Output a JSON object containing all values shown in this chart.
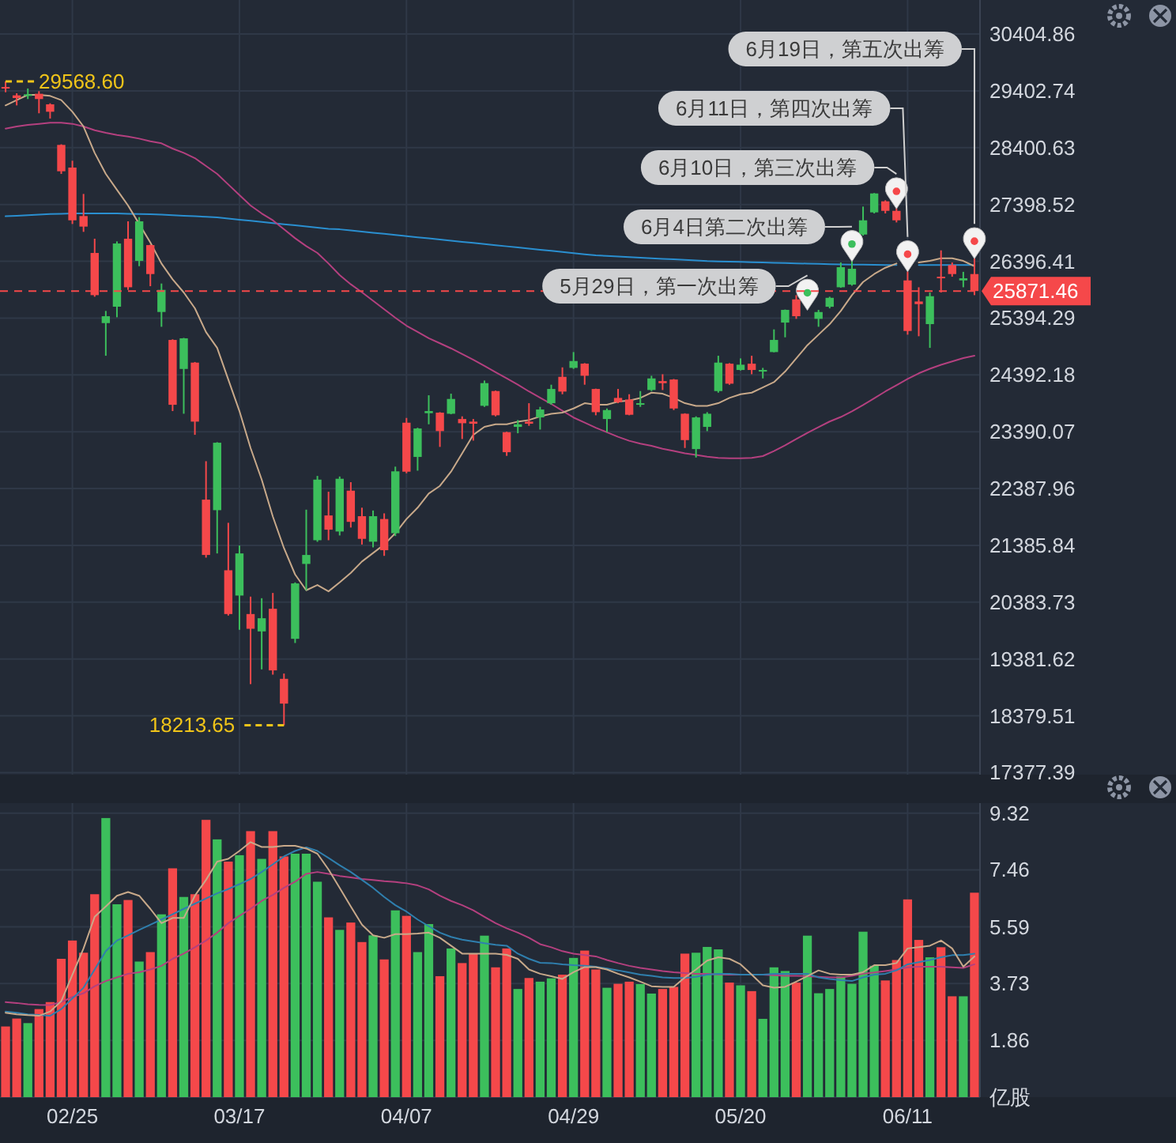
{
  "chart_data": [
    {
      "type": "candlestick",
      "tick_labels": "y",
      "grid": true,
      "categories": [
        null,
        null,
        null,
        null,
        null,
        null,
        null,
        null,
        null,
        null,
        null,
        null,
        null,
        null,
        null,
        null,
        null,
        null,
        null,
        null,
        null,
        null,
        null,
        null,
        null,
        null,
        null,
        null,
        null,
        null,
        null,
        null,
        null,
        null,
        null,
        null,
        null,
        null,
        null,
        null,
        null,
        null,
        null,
        null,
        null,
        null,
        null,
        null,
        null,
        null,
        null,
        null,
        null,
        null,
        null,
        null,
        null,
        null,
        null,
        null,
        null,
        null,
        null,
        null,
        null,
        null,
        null,
        null,
        null,
        null,
        null,
        null,
        null,
        null,
        null,
        null,
        null,
        null,
        null,
        null,
        null,
        null,
        null,
        null,
        null,
        null,
        null,
        null
      ],
      "ohlc": [
        [
          29471,
          29568.6,
          29378,
          29444
        ],
        [
          29323,
          29360,
          29146,
          29276
        ],
        [
          29313,
          29444,
          29258,
          29341
        ],
        [
          29351,
          29397,
          29007,
          29258
        ],
        [
          29165,
          29183,
          28914,
          29034
        ],
        [
          28449,
          28460,
          27937,
          27984
        ],
        [
          28049,
          28170,
          27054,
          27119
        ],
        [
          27194,
          27584,
          26915,
          27008
        ],
        [
          26543,
          26794,
          25771,
          25799
        ],
        [
          25306,
          25520,
          24730,
          25427
        ],
        [
          25595,
          26747,
          25409,
          26710
        ],
        [
          26794,
          27101,
          25892,
          25938
        ],
        [
          26403,
          27175,
          26310,
          27101
        ],
        [
          26682,
          26690,
          25957,
          26171
        ],
        [
          25502,
          26004,
          25241,
          25892
        ],
        [
          25009,
          25020,
          23754,
          23865
        ],
        [
          24497,
          25045,
          23707,
          25037
        ],
        [
          24609,
          24620,
          23335,
          23568
        ],
        [
          22192,
          22870,
          21169,
          21216
        ],
        [
          22006,
          23205,
          21243,
          23196
        ],
        [
          20946,
          21783,
          20147,
          20174
        ],
        [
          20500,
          21383,
          19896,
          21243
        ],
        [
          20174,
          20481,
          18938,
          19914
        ],
        [
          19868,
          20453,
          19198,
          20100
        ],
        [
          20267,
          20546,
          19105,
          19180
        ],
        [
          19031,
          19124,
          18213.65,
          18594
        ],
        [
          19737,
          20732,
          19663,
          20714
        ],
        [
          21058,
          22015,
          20593,
          21216
        ],
        [
          21476,
          22610,
          21448,
          22545
        ],
        [
          21913,
          22331,
          21476,
          21662
        ],
        [
          21630,
          22600,
          21560,
          22560
        ],
        [
          22350,
          22500,
          21700,
          21800
        ],
        [
          21900,
          22050,
          21400,
          21500
        ],
        [
          21450,
          22000,
          21350,
          21900
        ],
        [
          21850,
          21950,
          21200,
          21300
        ],
        [
          21600,
          22774,
          21550,
          22691
        ],
        [
          23549,
          23633,
          22657,
          22685
        ],
        [
          22945,
          23460,
          22703,
          23447
        ],
        [
          23717,
          24033,
          23521,
          23754
        ],
        [
          23726,
          23735,
          23122,
          23401
        ],
        [
          23707,
          24061,
          23698,
          23968
        ],
        [
          23614,
          23661,
          23261,
          23540
        ],
        [
          23568,
          23614,
          23233,
          23531
        ],
        [
          23847,
          24293,
          23828,
          24247
        ],
        [
          24107,
          24115,
          23661,
          23680
        ],
        [
          23382,
          23390,
          22964,
          23029
        ],
        [
          23475,
          23596,
          23363,
          23521
        ],
        [
          23568,
          23893,
          23494,
          23531
        ],
        [
          23642,
          23828,
          23428,
          23782
        ],
        [
          23893,
          24219,
          23866,
          24144
        ],
        [
          24358,
          24525,
          24051,
          24098
        ],
        [
          24516,
          24795,
          24498,
          24637
        ],
        [
          24591,
          24600,
          24219,
          24377
        ],
        [
          24144,
          24150,
          23680,
          23735
        ],
        [
          23614,
          23800,
          23382,
          23772
        ],
        [
          23986,
          24144,
          23893,
          23912
        ],
        [
          23958,
          24051,
          23680,
          23689
        ],
        [
          23866,
          24107,
          23828,
          23893
        ],
        [
          24126,
          24377,
          24107,
          24330
        ],
        [
          24283,
          24404,
          24125,
          24246
        ],
        [
          24311,
          24320,
          23772,
          23800
        ],
        [
          23707,
          23715,
          23103,
          23242
        ],
        [
          23084,
          23661,
          22935,
          23642
        ],
        [
          23475,
          23735,
          23400,
          23707
        ],
        [
          24107,
          24730,
          24079,
          24609
        ],
        [
          24590,
          24600,
          24218,
          24237
        ],
        [
          24479,
          24683,
          24469,
          24572
        ],
        [
          24590,
          24730,
          24404,
          24479
        ],
        [
          24460,
          24516,
          24330,
          24479
        ],
        [
          24795,
          25195,
          24790,
          25009
        ],
        [
          25315,
          25545,
          25055,
          25539
        ],
        [
          25724,
          25799,
          25381,
          25427
        ],
        null,
        [
          25381,
          25539,
          25241,
          25501
        ],
        [
          25594,
          25771,
          25566,
          25752
        ],
        [
          25938,
          26375,
          25929,
          26292
        ],
        [
          25985,
          26403,
          25966,
          26264
        ],
        [
          26868,
          27361,
          26850,
          27119
        ],
        [
          27259,
          27600,
          27240,
          27593
        ],
        [
          27454,
          27472,
          27240,
          27286
        ],
        [
          27286,
          27333,
          27082,
          27119
        ],
        [
          26059,
          26217,
          25102,
          25167
        ],
        [
          25687,
          25938,
          25074,
          25641
        ],
        [
          25288,
          25845,
          24869,
          25780
        ],
        [
          26124,
          26589,
          25845,
          26096
        ],
        [
          26329,
          26375,
          26124,
          26171
        ],
        [
          26059,
          26210,
          25938,
          26096
        ],
        [
          26171,
          26450,
          25799,
          25871.46
        ]
      ],
      "colors": [
        "#f5484a",
        "#f5484a",
        "#3cbf5c",
        "#f5484a",
        "#f5484a",
        "#f5484a",
        "#f5484a",
        "#f5484a",
        "#f5484a",
        "#3cbf5c",
        "#3cbf5c",
        "#f5484a",
        "#3cbf5c",
        "#f5484a",
        "#3cbf5c",
        "#f5484a",
        "#3cbf5c",
        "#f5484a",
        "#f5484a",
        "#3cbf5c",
        "#f5484a",
        "#3cbf5c",
        "#f5484a",
        "#3cbf5c",
        "#f5484a",
        "#f5484a",
        "#3cbf5c",
        "#3cbf5c",
        "#3cbf5c",
        "#f5484a",
        "#3cbf5c",
        "#f5484a",
        "#f5484a",
        "#3cbf5c",
        "#f5484a",
        "#3cbf5c",
        "#f5484a",
        "#3cbf5c",
        "#3cbf5c",
        "#f5484a",
        "#3cbf5c",
        "#f5484a",
        "#f5484a",
        "#3cbf5c",
        "#f5484a",
        "#f5484a",
        "#3cbf5c",
        "#f5484a",
        "#3cbf5c",
        "#3cbf5c",
        "#f5484a",
        "#3cbf5c",
        "#f5484a",
        "#f5484a",
        "#3cbf5c",
        "#f5484a",
        "#f5484a",
        "#3cbf5c",
        "#3cbf5c",
        "#f5484a",
        "#f5484a",
        "#f5484a",
        "#3cbf5c",
        "#3cbf5c",
        "#3cbf5c",
        "#f5484a",
        "#3cbf5c",
        "#f5484a",
        "#3cbf5c",
        "#3cbf5c",
        "#3cbf5c",
        "#f5484a",
        "#3cbf5c",
        "#3cbf5c",
        "#3cbf5c",
        "#3cbf5c",
        "#3cbf5c",
        "#3cbf5c",
        "#3cbf5c",
        "#f5484a",
        "#f5484a",
        "#f5484a",
        "#f5484a",
        "#3cbf5c",
        "#f5484a",
        "#f5484a",
        "#3cbf5c",
        "#f5484a"
      ],
      "series": [
        {
          "type": "line",
          "color": "#2a8fd0",
          "values": [
            27190,
            27200,
            27210,
            27220,
            27230,
            27235,
            27240,
            27240,
            27240,
            27240,
            27240,
            27235,
            27230,
            27225,
            27220,
            27210,
            27200,
            27190,
            27180,
            27170,
            27150,
            27130,
            27110,
            27090,
            27070,
            27050,
            27030,
            27010,
            26990,
            26970,
            26960,
            26940,
            26920,
            26900,
            26880,
            26860,
            26840,
            26820,
            26800,
            26780,
            26760,
            26740,
            26720,
            26700,
            26680,
            26660,
            26640,
            26620,
            26600,
            26580,
            26560,
            26540,
            26520,
            26500,
            26490,
            26480,
            26470,
            26460,
            26450,
            26440,
            26430,
            26420,
            26410,
            26400,
            26395,
            26390,
            26385,
            26380,
            26375,
            26370,
            26365,
            26360,
            26355,
            26350,
            26345,
            26340,
            26338,
            26336,
            26334,
            26332,
            26330,
            null,
            26330,
            26330,
            26330,
            26330,
            26330,
            26330
          ]
        },
        {
          "type": "line",
          "color": "#b4407f",
          "values": [
            28737,
            28774,
            28802,
            28821,
            28839,
            28839,
            28821,
            28774,
            28709,
            28662,
            28625,
            28597,
            28560,
            28514,
            28477,
            28384,
            28309,
            28216,
            28077,
            27937,
            27751,
            27565,
            27380,
            27240,
            27119,
            26961,
            26803,
            26664,
            26543,
            26357,
            26152,
            25990,
            25850,
            25700,
            25550,
            25400,
            25260,
            25150,
            25040,
            24950,
            24860,
            24760,
            24660,
            24550,
            24440,
            24330,
            24220,
            24100,
            23990,
            23880,
            23760,
            23640,
            23550,
            23460,
            23380,
            23300,
            23230,
            23180,
            23140,
            23090,
            23050,
            23010,
            22980,
            22950,
            22930,
            22920,
            22920,
            22930,
            22960,
            23050,
            23150,
            23260,
            23370,
            23470,
            23570,
            23650,
            23750,
            23860,
            23980,
            24100,
            24210,
            24320,
            24420,
            24500,
            24570,
            24630,
            24690,
            24730
          ]
        },
        {
          "type": "line",
          "color": "#c8a98a",
          "values": [
            29146,
            29239,
            29332,
            29332,
            29313,
            29239,
            29034,
            28774,
            28309,
            27937,
            27658,
            27380,
            27054,
            26729,
            26357,
            26078,
            25846,
            25567,
            25148,
            24869,
            24311,
            23754,
            23103,
            22545,
            21894,
            21336,
            20872,
            20593,
            20686,
            20574,
            20732,
            20900,
            21100,
            21250,
            21400,
            21600,
            21850,
            22050,
            22300,
            22434,
            22685,
            23010,
            23335,
            23475,
            23521,
            23521,
            23568,
            23596,
            23661,
            23707,
            23726,
            23800,
            23893,
            23866,
            23866,
            23921,
            23940,
            23986,
            24079,
            24060,
            23986,
            23893,
            23846,
            23846,
            23893,
            23986,
            24051,
            24079,
            24172,
            24265,
            24451,
            24683,
            24916,
            25102,
            25288,
            25520,
            25799,
            26031,
            26171,
            26282,
            26357,
            null,
            26375,
            26403,
            26450,
            26450,
            26403,
            26310
          ]
        },
        {
          "type": "scatter",
          "color": "#f2f2f2",
          "values": [
            null,
            null,
            null,
            null,
            null,
            null,
            null,
            null,
            null,
            null,
            null,
            null,
            null,
            null,
            null,
            null,
            null,
            null,
            null,
            null,
            null,
            null,
            null,
            null,
            null,
            null,
            null,
            null,
            null,
            null,
            null,
            null,
            null,
            null,
            null,
            null,
            null,
            null,
            null,
            null,
            null,
            null,
            null,
            null,
            null,
            null,
            null,
            null,
            null,
            null,
            null,
            null,
            null,
            null,
            null,
            null,
            null,
            null,
            null,
            null,
            null,
            null,
            null,
            null,
            null,
            null,
            null,
            null,
            null,
            null,
            null,
            null,
            25840,
            null,
            null,
            null,
            26700,
            null,
            null,
            null,
            27630,
            26520,
            null,
            null,
            null,
            null,
            null,
            26750
          ]
        }
      ],
      "ylim": [
        17341,
        31005
      ],
      "yticks": [
        30404.86,
        29402.74,
        28400.63,
        27398.52,
        26396.41,
        25394.29,
        24392.18,
        23390.07,
        22387.96,
        21385.84,
        20383.73,
        19381.62,
        18379.51,
        17377.39
      ],
      "ref_lines": [
        {
          "axis": "y",
          "value": 25871.46,
          "label": "25871.46",
          "color": "#f5484a",
          "line_style": "dashed"
        }
      ],
      "annotations": [
        "29568.60",
        "18213.65",
        "5月29日，第一次出筹",
        "6月4日第二次出筹",
        "6月10日，第三次出筹",
        "6月11日，第四次出筹",
        "6月19日，第五次出筹"
      ]
    },
    {
      "type": "bar",
      "grid": true,
      "categories": [
        null,
        null,
        null,
        null,
        null,
        null,
        "02/25",
        null,
        null,
        null,
        null,
        null,
        null,
        null,
        null,
        null,
        null,
        null,
        null,
        null,
        null,
        "03/17",
        null,
        null,
        null,
        null,
        null,
        null,
        null,
        null,
        null,
        null,
        null,
        null,
        null,
        null,
        "04/07",
        null,
        null,
        null,
        null,
        null,
        null,
        null,
        null,
        null,
        null,
        null,
        null,
        null,
        null,
        "04/29",
        null,
        null,
        null,
        null,
        null,
        null,
        null,
        null,
        null,
        null,
        null,
        null,
        null,
        null,
        "05/20",
        null,
        null,
        null,
        null,
        null,
        null,
        null,
        null,
        null,
        null,
        null,
        null,
        null,
        null,
        "06/11",
        null,
        null,
        null,
        null,
        null,
        null
      ],
      "series": [
        {
          "type": "bar",
          "values": [
            2.32,
            2.58,
            2.43,
            2.89,
            3.12,
            4.54,
            5.14,
            4.74,
            6.66,
            9.16,
            6.33,
            6.47,
            4.45,
            4.76,
            6.0,
            7.51,
            6.57,
            6.66,
            9.1,
            8.46,
            7.73,
            7.94,
            8.73,
            7.82,
            8.73,
            7.9,
            7.99,
            7.99,
            7.07,
            5.9,
            5.49,
            5.73,
            5.09,
            5.31,
            4.52,
            6.13,
            5.95,
            4.76,
            5.68,
            3.97,
            4.88,
            4.4,
            4.71,
            5.3,
            4.26,
            4.88,
            3.55,
            3.91,
            3.79,
            3.9,
            4.02,
            4.57,
            4.81,
            4.19,
            3.59,
            3.72,
            3.79,
            3.71,
            3.4,
            3.55,
            3.62,
            4.71,
            4.74,
            4.93,
            4.85,
            3.76,
            3.67,
            3.48,
            2.57,
            4.26,
            4.14,
            3.76,
            5.3,
            3.41,
            3.55,
            3.97,
            3.72,
            5.43,
            4.31,
            3.83,
            4.5,
            6.49,
            5.16,
            4.59,
            4.92,
            3.31,
            3.31,
            6.71
          ],
          "colors": [
            "#f5484a",
            "#f5484a",
            "#3cbf5c",
            "#f5484a",
            "#f5484a",
            "#f5484a",
            "#f5484a",
            "#f5484a",
            "#f5484a",
            "#3cbf5c",
            "#3cbf5c",
            "#f5484a",
            "#3cbf5c",
            "#f5484a",
            "#3cbf5c",
            "#f5484a",
            "#3cbf5c",
            "#f5484a",
            "#f5484a",
            "#3cbf5c",
            "#f5484a",
            "#3cbf5c",
            "#f5484a",
            "#3cbf5c",
            "#f5484a",
            "#f5484a",
            "#3cbf5c",
            "#3cbf5c",
            "#3cbf5c",
            "#f5484a",
            "#3cbf5c",
            "#f5484a",
            "#f5484a",
            "#3cbf5c",
            "#f5484a",
            "#3cbf5c",
            "#f5484a",
            "#3cbf5c",
            "#3cbf5c",
            "#f5484a",
            "#3cbf5c",
            "#f5484a",
            "#f5484a",
            "#3cbf5c",
            "#f5484a",
            "#f5484a",
            "#3cbf5c",
            "#f5484a",
            "#3cbf5c",
            "#3cbf5c",
            "#f5484a",
            "#3cbf5c",
            "#f5484a",
            "#f5484a",
            "#3cbf5c",
            "#f5484a",
            "#f5484a",
            "#3cbf5c",
            "#3cbf5c",
            "#f5484a",
            "#f5484a",
            "#f5484a",
            "#3cbf5c",
            "#3cbf5c",
            "#3cbf5c",
            "#f5484a",
            "#3cbf5c",
            "#f5484a",
            "#3cbf5c",
            "#3cbf5c",
            "#3cbf5c",
            "#f5484a",
            "#3cbf5c",
            "#3cbf5c",
            "#3cbf5c",
            "#3cbf5c",
            "#3cbf5c",
            "#3cbf5c",
            "#3cbf5c",
            "#f5484a",
            "#f5484a",
            "#f5484a",
            "#f5484a",
            "#3cbf5c",
            "#f5484a",
            "#f5484a",
            "#3cbf5c",
            "#f5484a"
          ]
        },
        {
          "type": "line",
          "color": "#b4407f",
          "values": [
            3.12,
            3.09,
            3.05,
            3.03,
            3.02,
            3.12,
            3.29,
            3.41,
            3.64,
            3.81,
            3.93,
            4.05,
            4.1,
            4.19,
            4.31,
            4.54,
            4.71,
            4.92,
            5.14,
            5.4,
            5.71,
            5.95,
            6.18,
            6.44,
            6.64,
            6.87,
            7.07,
            7.33,
            7.39,
            7.33,
            7.26,
            7.21,
            7.16,
            7.13,
            7.09,
            7.06,
            7.02,
            6.95,
            6.82,
            6.61,
            6.44,
            6.3,
            6.13,
            5.92,
            5.71,
            5.54,
            5.4,
            5.23,
            5.02,
            4.92,
            4.79,
            4.71,
            4.66,
            4.62,
            4.5,
            4.4,
            4.31,
            4.24,
            4.19,
            4.14,
            4.1,
            4.07,
            4.05,
            4.05,
            4.03,
            4.02,
            4.02,
            4.02,
            4.02,
            4.0,
            3.98,
            3.98,
            3.97,
            3.95,
            3.93,
            3.93,
            3.98,
            4.05,
            4.09,
            4.14,
            4.19,
            4.26,
            4.28,
            4.28,
            4.28,
            4.26,
            4.24,
            4.36
          ]
        },
        {
          "type": "line",
          "color": "#2f7fae",
          "values": [
            2.81,
            2.77,
            2.72,
            2.7,
            2.67,
            2.89,
            3.24,
            3.59,
            4.19,
            4.79,
            5.14,
            5.31,
            5.49,
            5.66,
            5.83,
            6.0,
            6.18,
            6.35,
            6.52,
            6.69,
            6.83,
            6.99,
            7.16,
            7.39,
            7.64,
            7.9,
            8.08,
            8.2,
            8.08,
            7.85,
            7.61,
            7.39,
            7.13,
            6.87,
            6.57,
            6.3,
            6.09,
            5.83,
            5.61,
            5.4,
            5.26,
            5.17,
            5.11,
            5.05,
            5.0,
            4.97,
            4.71,
            4.54,
            4.41,
            4.4,
            4.36,
            4.33,
            4.31,
            4.28,
            4.22,
            4.16,
            4.09,
            4.02,
            3.98,
            3.93,
            3.91,
            3.91,
            3.95,
            4.02,
            4.05,
            4.05,
            4.02,
            4.02,
            4.02,
            4.05,
            4.05,
            4.05,
            4.05,
            3.93,
            3.88,
            3.84,
            3.81,
            3.93,
            4.02,
            4.05,
            4.16,
            4.36,
            4.43,
            4.5,
            4.59,
            4.66,
            4.66,
            4.71
          ]
        },
        {
          "type": "line",
          "color": "#c8a98a",
          "values": [
            2.77,
            2.72,
            2.69,
            2.67,
            2.81,
            3.15,
            4.02,
            4.88,
            5.92,
            6.26,
            6.61,
            6.73,
            6.61,
            6.18,
            5.71,
            5.88,
            5.88,
            6.61,
            7.13,
            7.73,
            7.82,
            8.08,
            8.37,
            8.21,
            8.21,
            8.25,
            8.25,
            8.16,
            7.99,
            7.47,
            6.87,
            6.26,
            5.66,
            5.31,
            5.23,
            5.35,
            5.35,
            5.37,
            5.4,
            5.23,
            4.97,
            4.71,
            4.71,
            4.71,
            4.71,
            4.67,
            4.54,
            4.19,
            4.05,
            3.97,
            3.88,
            4.1,
            4.27,
            4.27,
            4.19,
            4.05,
            3.93,
            3.79,
            3.64,
            3.62,
            3.62,
            3.93,
            4.19,
            4.48,
            4.59,
            4.54,
            4.36,
            4.02,
            3.67,
            3.59,
            3.62,
            3.79,
            3.97,
            4.16,
            4.05,
            4.02,
            4.02,
            4.1,
            4.33,
            4.33,
            4.4,
            4.88,
            4.92,
            4.97,
            5.14,
            4.88,
            4.28,
            4.62
          ]
        }
      ],
      "ylim": [
        0,
        9.65
      ],
      "yticks": [
        9.32,
        7.46,
        5.59,
        3.73,
        1.86,
        {
          "value": 0,
          "label": "亿股"
        }
      ]
    }
  ]
}
